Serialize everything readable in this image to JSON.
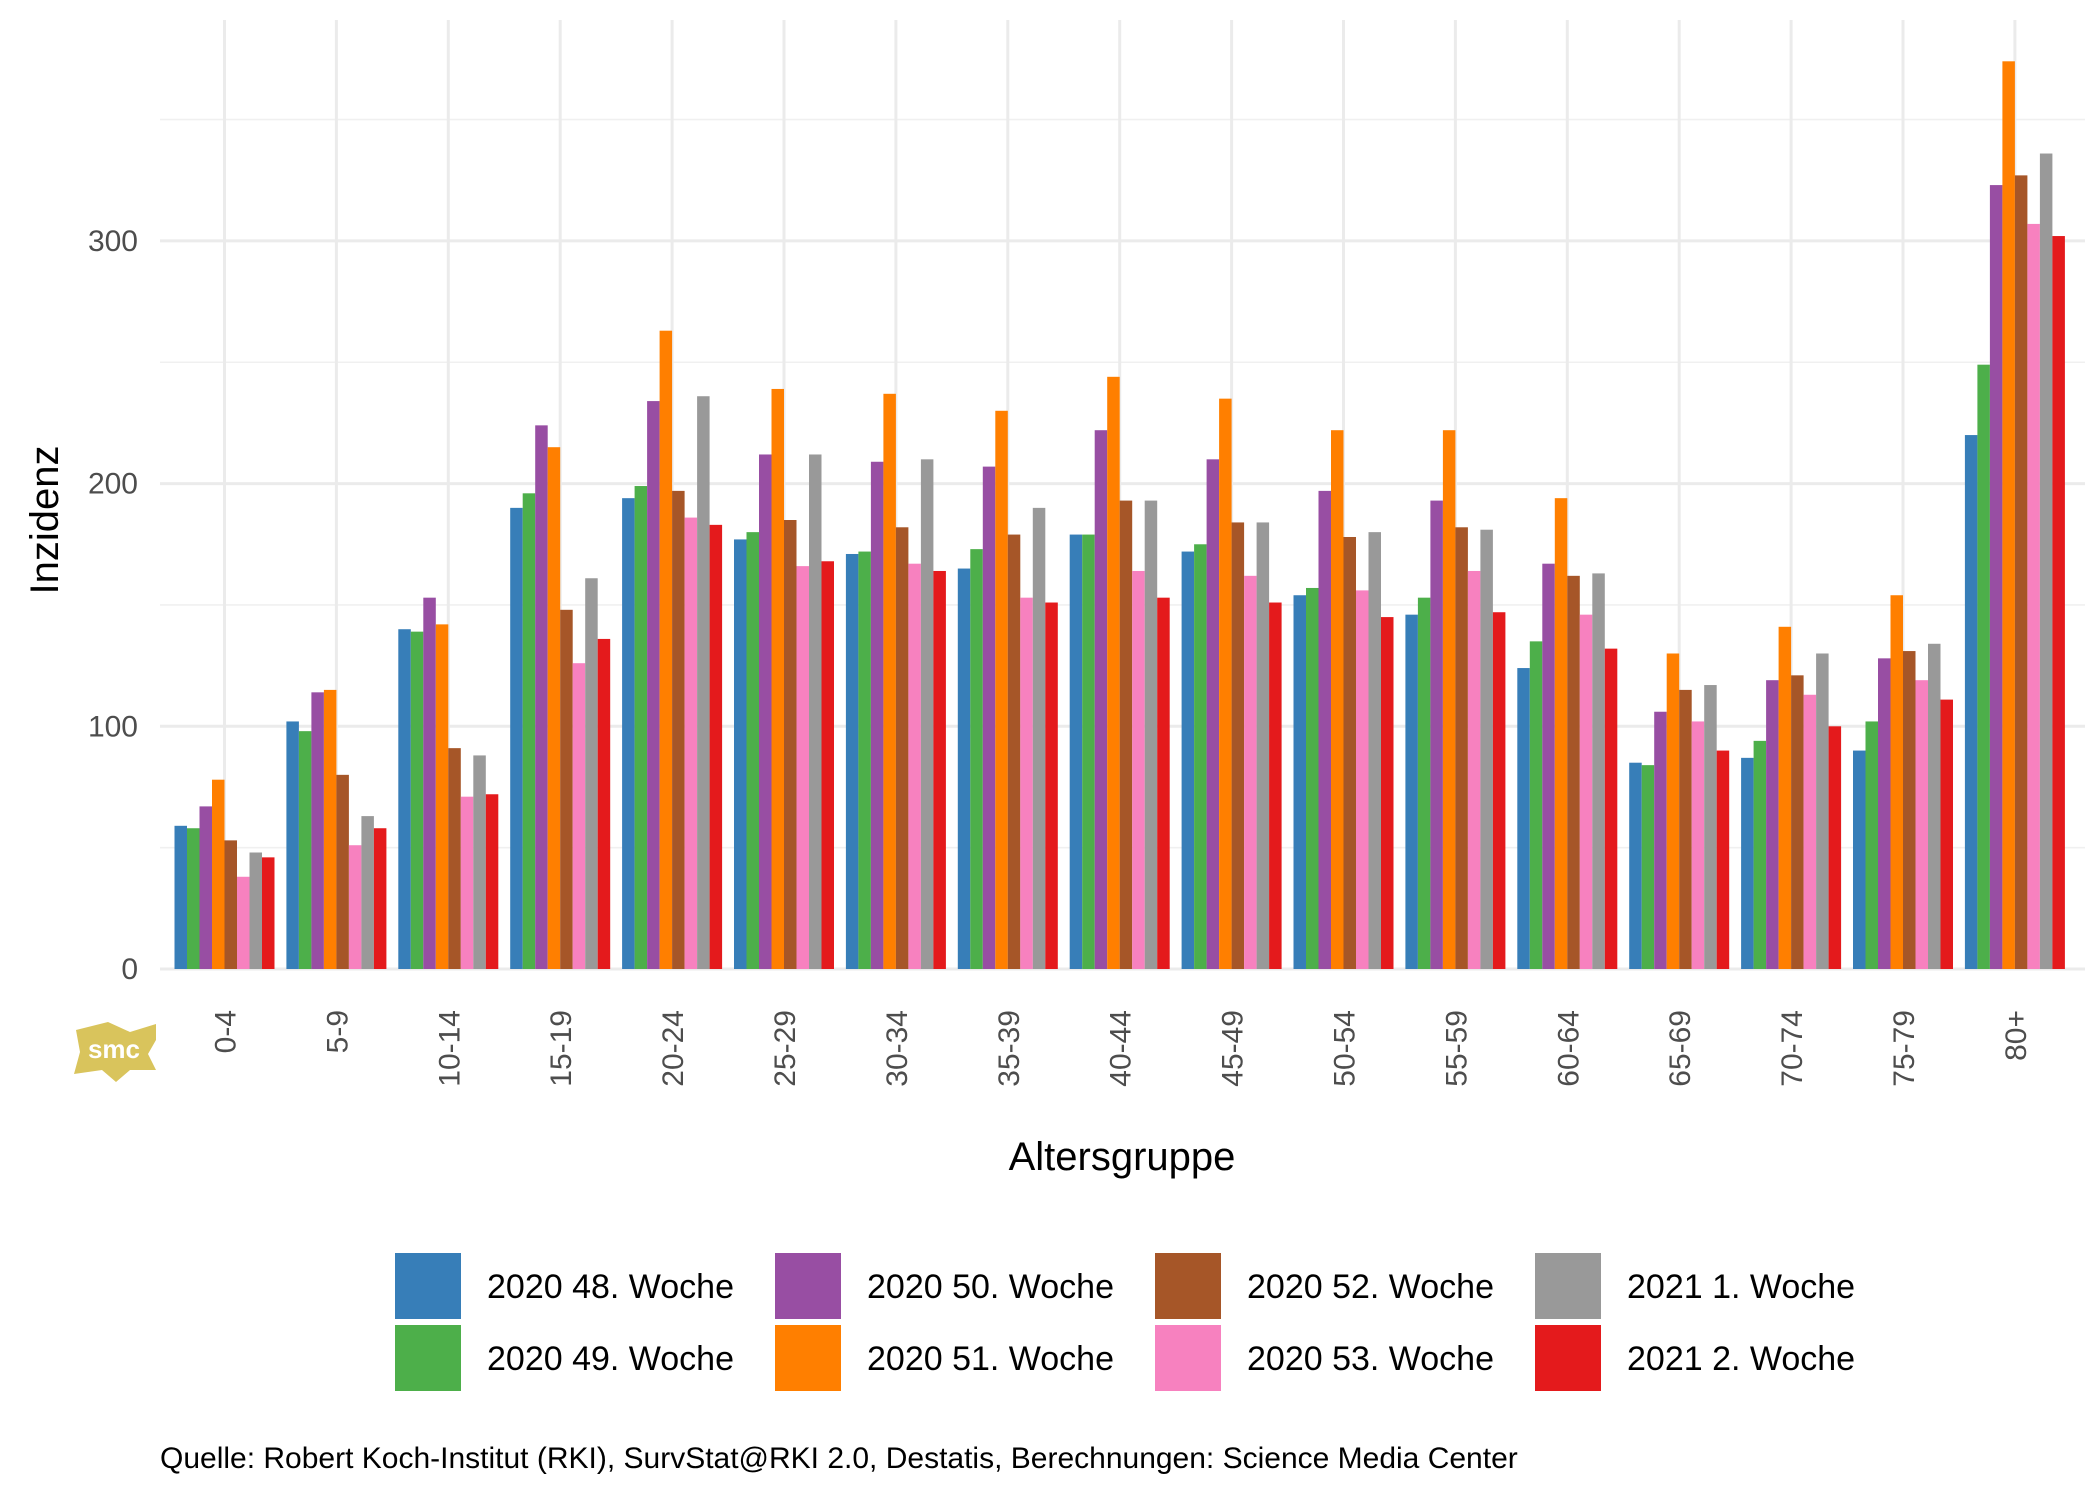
{
  "chart_data": {
    "type": "bar",
    "title": "",
    "xlabel": "Altersgruppe",
    "ylabel": "Inzidenz",
    "ylim": [
      0,
      375
    ],
    "yticks": [
      0,
      100,
      200,
      300
    ],
    "grid": true,
    "legend_position": "bottom",
    "categories": [
      "0-4",
      "5-9",
      "10-14",
      "15-19",
      "20-24",
      "25-29",
      "30-34",
      "35-39",
      "40-44",
      "45-49",
      "50-54",
      "55-59",
      "60-64",
      "65-69",
      "70-74",
      "75-79",
      "80+"
    ],
    "series": [
      {
        "name": "2020 48. Woche",
        "color": "#377eb8",
        "values": [
          59,
          102,
          140,
          190,
          194,
          177,
          171,
          165,
          179,
          172,
          154,
          146,
          124,
          85,
          87,
          90,
          220
        ]
      },
      {
        "name": "2020 49. Woche",
        "color": "#4daf4a",
        "values": [
          58,
          98,
          139,
          196,
          199,
          180,
          172,
          173,
          179,
          175,
          157,
          153,
          135,
          84,
          94,
          102,
          249
        ]
      },
      {
        "name": "2020 50. Woche",
        "color": "#984ea3",
        "values": [
          67,
          114,
          153,
          224,
          234,
          212,
          209,
          207,
          222,
          210,
          197,
          193,
          167,
          106,
          119,
          128,
          323
        ]
      },
      {
        "name": "2020 51. Woche",
        "color": "#ff7f00",
        "values": [
          78,
          115,
          142,
          215,
          263,
          239,
          237,
          230,
          244,
          235,
          222,
          222,
          194,
          130,
          141,
          154,
          374
        ]
      },
      {
        "name": "2020 52. Woche",
        "color": "#a65628",
        "values": [
          53,
          80,
          91,
          148,
          197,
          185,
          182,
          179,
          193,
          184,
          178,
          182,
          162,
          115,
          121,
          131,
          327
        ]
      },
      {
        "name": "2020 53. Woche",
        "color": "#f781bf",
        "values": [
          38,
          51,
          71,
          126,
          186,
          166,
          167,
          153,
          164,
          162,
          156,
          164,
          146,
          102,
          113,
          119,
          307
        ]
      },
      {
        "name": "2021 1. Woche",
        "color": "#999999",
        "values": [
          48,
          63,
          88,
          161,
          236,
          212,
          210,
          190,
          193,
          184,
          180,
          181,
          163,
          117,
          130,
          134,
          336
        ]
      },
      {
        "name": "2021 2. Woche",
        "color": "#e41a1c",
        "values": [
          46,
          58,
          72,
          136,
          183,
          168,
          164,
          151,
          153,
          151,
          145,
          147,
          132,
          90,
          100,
          111,
          302
        ]
      }
    ],
    "caption": "Quelle: Robert Koch-Institut (RKI), SurvStat@RKI 2.0, Destatis, Berechnungen: Science Media Center"
  },
  "logo": {
    "text": "smc",
    "color": "#d9c45c"
  }
}
